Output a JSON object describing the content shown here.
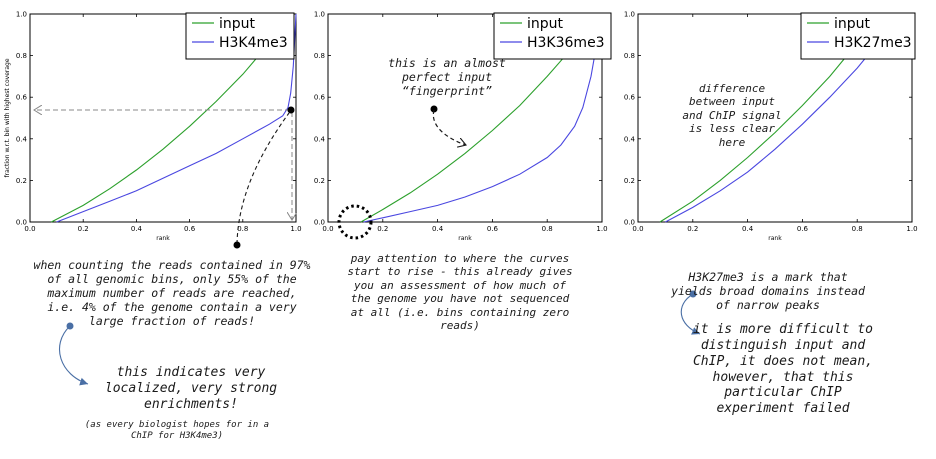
{
  "colors": {
    "input": "#2ca02c",
    "chip": "#4a47e0",
    "annotation": "#1a1a1a",
    "dot": "#4a6fa5",
    "guide": "#888888"
  },
  "chart_data": [
    {
      "type": "line",
      "xlabel": "rank",
      "ylabel": "fraction w.r.t. bin with highest coverage",
      "xlim": [
        0.0,
        1.0
      ],
      "ylim": [
        0.0,
        1.0
      ],
      "xticks": [
        "0.0",
        "0.2",
        "0.4",
        "0.6",
        "0.8",
        "1.0"
      ],
      "yticks": [
        "0.0",
        "0.2",
        "0.4",
        "0.6",
        "0.8",
        "1.0"
      ],
      "legend_position": "top-right",
      "series": [
        {
          "name": "input",
          "x": [
            0.08,
            0.2,
            0.3,
            0.4,
            0.5,
            0.6,
            0.7,
            0.8,
            0.9,
            0.95
          ],
          "y": [
            0.0,
            0.08,
            0.16,
            0.25,
            0.35,
            0.46,
            0.58,
            0.71,
            0.86,
            0.94
          ]
        },
        {
          "name": "H3K4me3",
          "x": [
            0.1,
            0.2,
            0.3,
            0.4,
            0.5,
            0.6,
            0.7,
            0.8,
            0.9,
            0.95,
            0.97,
            0.98,
            0.99,
            1.0
          ],
          "y": [
            0.0,
            0.05,
            0.1,
            0.15,
            0.21,
            0.27,
            0.33,
            0.4,
            0.47,
            0.51,
            0.55,
            0.62,
            0.75,
            1.0
          ]
        }
      ]
    },
    {
      "type": "line",
      "xlabel": "rank",
      "ylabel": "",
      "xlim": [
        0.0,
        1.0
      ],
      "ylim": [
        0.0,
        1.0
      ],
      "xticks": [
        "0.0",
        "0.2",
        "0.4",
        "0.6",
        "0.8",
        "1.0"
      ],
      "yticks": [
        "0.0",
        "0.2",
        "0.4",
        "0.6",
        "0.8",
        "1.0"
      ],
      "legend_position": "top-right",
      "series": [
        {
          "name": "input",
          "x": [
            0.12,
            0.2,
            0.3,
            0.4,
            0.5,
            0.6,
            0.7,
            0.8,
            0.9,
            0.97
          ],
          "y": [
            0.0,
            0.06,
            0.14,
            0.23,
            0.33,
            0.44,
            0.56,
            0.7,
            0.85,
            0.96
          ]
        },
        {
          "name": "H3K36me3",
          "x": [
            0.13,
            0.2,
            0.3,
            0.4,
            0.5,
            0.6,
            0.7,
            0.8,
            0.85,
            0.9,
            0.93,
            0.96,
            0.98,
            1.0
          ],
          "y": [
            0.0,
            0.02,
            0.05,
            0.08,
            0.12,
            0.17,
            0.23,
            0.31,
            0.37,
            0.46,
            0.55,
            0.7,
            0.85,
            1.0
          ]
        }
      ]
    },
    {
      "type": "line",
      "xlabel": "rank",
      "ylabel": "",
      "xlim": [
        0.0,
        1.0
      ],
      "ylim": [
        0.0,
        1.0
      ],
      "xticks": [
        "0.0",
        "0.2",
        "0.4",
        "0.6",
        "0.8",
        "1.0"
      ],
      "yticks": [
        "0.0",
        "0.2",
        "0.4",
        "0.6",
        "0.8",
        "1.0"
      ],
      "legend_position": "top-right",
      "series": [
        {
          "name": "input",
          "x": [
            0.08,
            0.2,
            0.3,
            0.4,
            0.5,
            0.6,
            0.7,
            0.8,
            0.87
          ],
          "y": [
            0.0,
            0.1,
            0.2,
            0.31,
            0.43,
            0.56,
            0.7,
            0.86,
            0.97
          ]
        },
        {
          "name": "H3K27me3",
          "x": [
            0.1,
            0.2,
            0.3,
            0.4,
            0.5,
            0.6,
            0.7,
            0.8,
            0.9,
            0.94
          ],
          "y": [
            0.0,
            0.07,
            0.15,
            0.24,
            0.35,
            0.47,
            0.6,
            0.74,
            0.9,
            0.97
          ]
        }
      ]
    }
  ],
  "notes": {
    "p1_main": "when counting the reads contained in 97%\nof all genomic bins, only 55% of the\nmaximum number of reads are reached,\ni.e. 4% of the genome contain a very\nlarge fraction of reads!",
    "p1_indicates": "this indicates very\nlocalized, very strong\nenrichments!",
    "p1_small": "(as every biologist hopes for in a\nChIP for H3K4me3)",
    "p2_fingerprint": "this is an almost\nperfect input\n“fingerprint”",
    "p2_attention": "pay attention to where the curves\nstart to rise - this already gives\nyou an assessment of how much of\nthe genome you have not sequenced\nat all (i.e. bins containing zero\nreads)",
    "p3_difference": "difference\nbetween input\nand ChIP signal\nis less clear\nhere",
    "p3_mark": "H3K27me3 is a mark that\nyields broad domains instead\nof narrow peaks",
    "p3_difficult": "it is more difficult to\ndistinguish input and\nChIP, it does not mean,\nhowever, that this\nparticular ChIP\nexperiment failed"
  }
}
